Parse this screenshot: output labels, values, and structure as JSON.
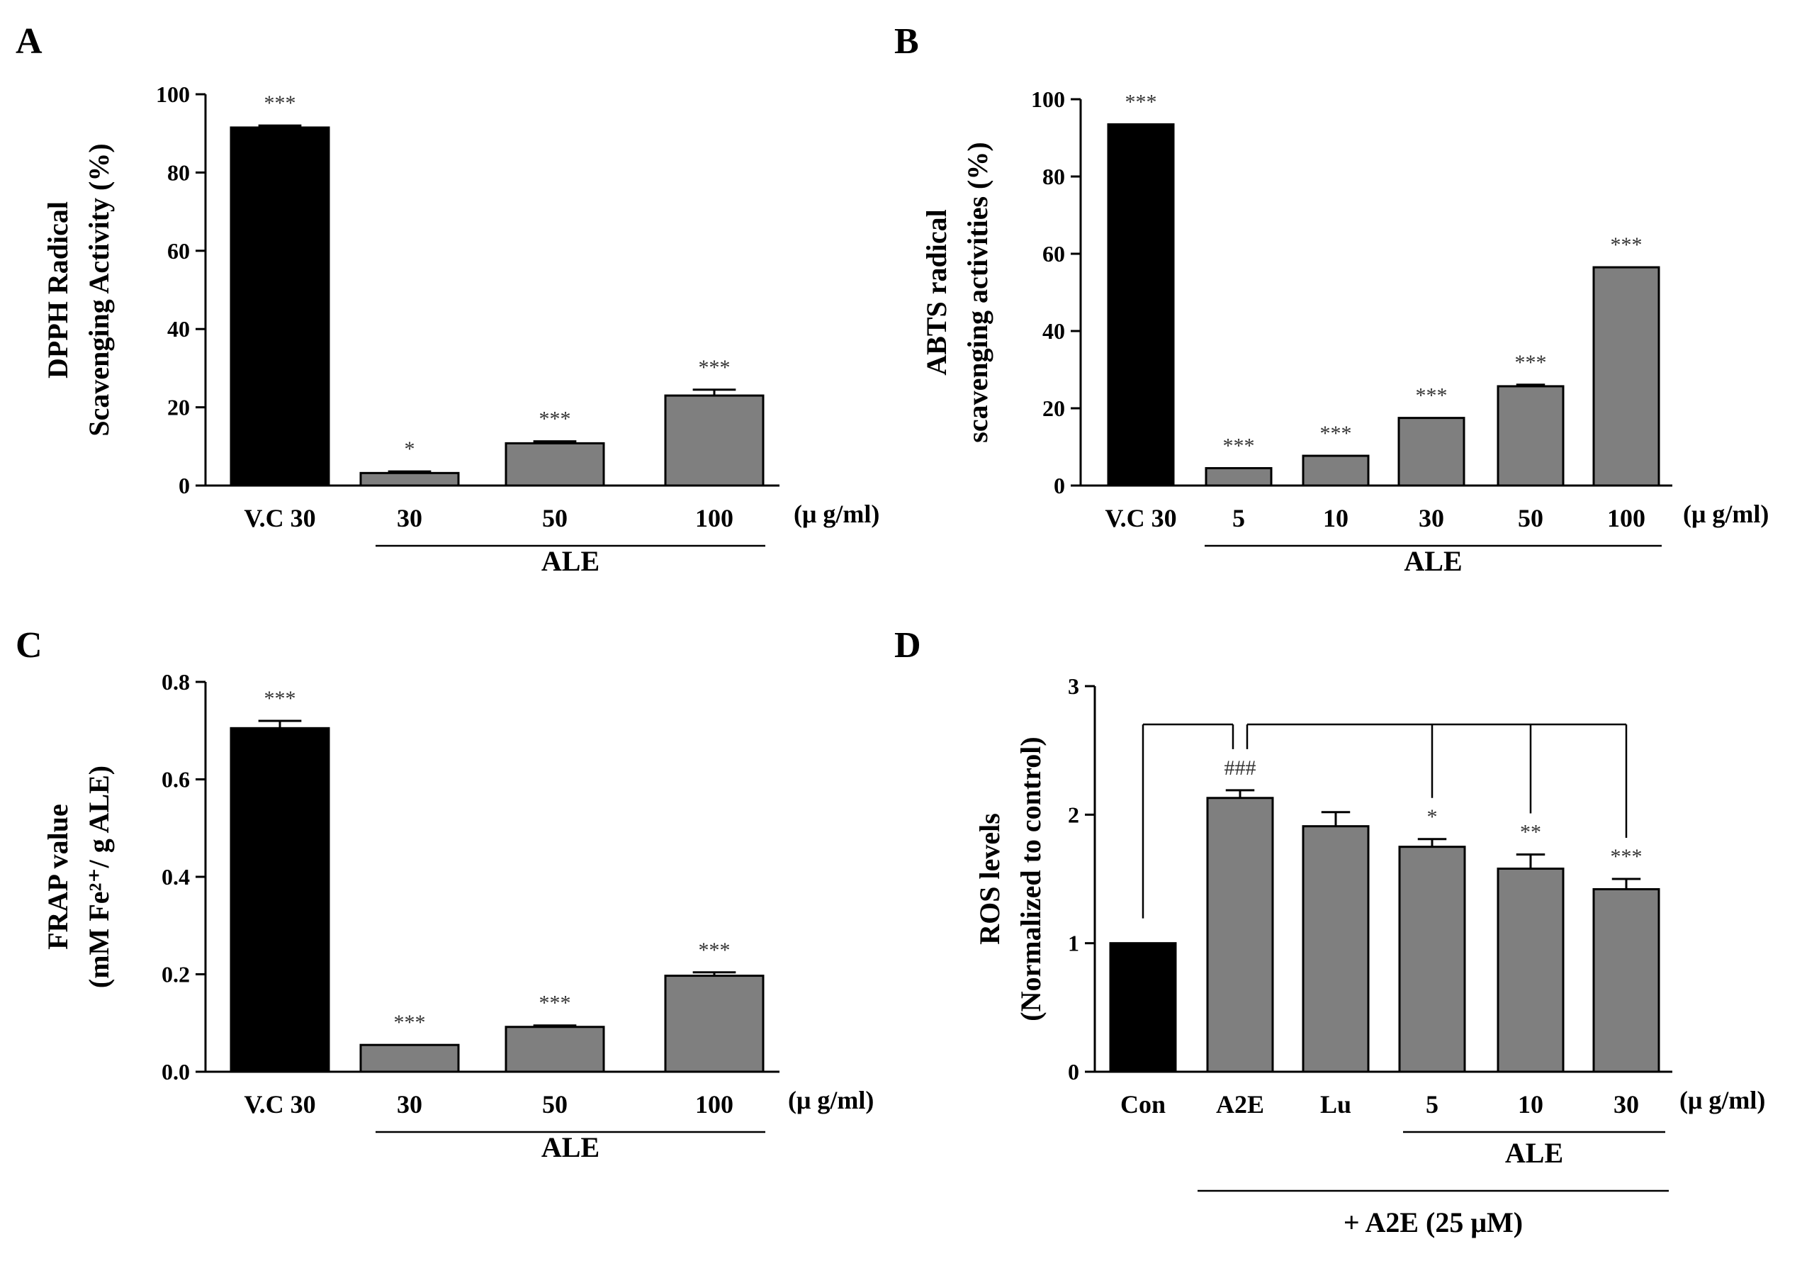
{
  "chart_data": [
    {
      "panel": "A",
      "type": "bar",
      "ylabel_lines": [
        "DPPH Radical",
        "Scavenging Activity  (%)"
      ],
      "ylim": [
        0,
        100
      ],
      "yticks": [
        "0",
        "20",
        "40",
        "60",
        "80",
        "100"
      ],
      "ytick_values": [
        0,
        20,
        40,
        60,
        80,
        100
      ],
      "categories": [
        "V.C 30",
        "30",
        "50",
        "100"
      ],
      "values": [
        91.5,
        3.2,
        10.8,
        23.0
      ],
      "errors": [
        0.5,
        0.4,
        0.5,
        1.5
      ],
      "colors": [
        "#000000",
        "#7f7f7f",
        "#7f7f7f",
        "#7f7f7f"
      ],
      "significance": [
        "***",
        "*",
        "***",
        "***"
      ],
      "unit": "(μ g/ml)",
      "group_label": "ALE"
    },
    {
      "panel": "B",
      "type": "bar",
      "ylabel_lines": [
        "ABTS radical",
        "scavenging activities (%)"
      ],
      "ylim": [
        0,
        100
      ],
      "yticks": [
        "0",
        "20",
        "40",
        "60",
        "80",
        "100"
      ],
      "ytick_values": [
        0,
        20,
        40,
        60,
        80,
        100
      ],
      "categories": [
        "V.C 30",
        "5",
        "10",
        "30",
        "50",
        "100"
      ],
      "values": [
        93.5,
        4.5,
        7.7,
        17.5,
        25.7,
        56.5
      ],
      "errors": [
        0.0,
        0.0,
        0.0,
        0.0,
        0.4,
        0.0
      ],
      "colors": [
        "#000000",
        "#7f7f7f",
        "#7f7f7f",
        "#7f7f7f",
        "#7f7f7f",
        "#7f7f7f"
      ],
      "significance": [
        "***",
        "***",
        "***",
        "***",
        "***",
        "***"
      ],
      "unit": "(μ g/ml)",
      "group_label": "ALE"
    },
    {
      "panel": "C",
      "type": "bar",
      "ylabel_lines": [
        "FRAP value",
        "(mM Fe²⁺/ g ALE)"
      ],
      "ylim": [
        0,
        0.8
      ],
      "yticks": [
        "0.0",
        "0.2",
        "0.4",
        "0.6",
        "0.8"
      ],
      "ytick_values": [
        0,
        0.2,
        0.4,
        0.6,
        0.8
      ],
      "categories": [
        "V.C 30",
        "30",
        "50",
        "100"
      ],
      "values": [
        0.705,
        0.055,
        0.092,
        0.197
      ],
      "errors": [
        0.015,
        0.0,
        0.003,
        0.007
      ],
      "colors": [
        "#000000",
        "#7f7f7f",
        "#7f7f7f",
        "#7f7f7f"
      ],
      "significance": [
        "***",
        "***",
        "***",
        "***"
      ],
      "unit": "(μ g/ml)",
      "group_label": "ALE"
    },
    {
      "panel": "D",
      "type": "bar",
      "ylabel_lines": [
        "ROS levels",
        "(Normalized to control)"
      ],
      "ylim": [
        0,
        3
      ],
      "yticks": [
        "0",
        "1",
        "2",
        "3"
      ],
      "ytick_values": [
        0,
        1,
        2,
        3
      ],
      "categories": [
        "Con",
        "A2E",
        "Lu",
        "5",
        "10",
        "30"
      ],
      "values": [
        1.0,
        2.13,
        1.91,
        1.75,
        1.58,
        1.42
      ],
      "errors": [
        0.0,
        0.06,
        0.11,
        0.06,
        0.11,
        0.08
      ],
      "colors": [
        "#000000",
        "#7f7f7f",
        "#7f7f7f",
        "#7f7f7f",
        "#7f7f7f",
        "#7f7f7f"
      ],
      "significance": [
        "",
        "###",
        "",
        "*",
        "**",
        "***"
      ],
      "unit": "(μ g/ml)",
      "group_label": "ALE",
      "outer_group_label": "+ A2E (25 μM)"
    }
  ]
}
